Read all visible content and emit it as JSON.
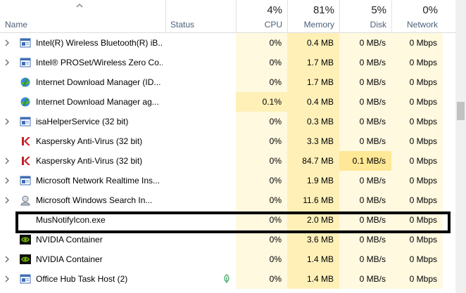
{
  "header": {
    "name_label": "Name",
    "status_label": "Status",
    "cpu": {
      "pct": "4%",
      "label": "CPU"
    },
    "memory": {
      "pct": "81%",
      "label": "Memory"
    },
    "disk": {
      "pct": "5%",
      "label": "Disk"
    },
    "network": {
      "pct": "0%",
      "label": "Network"
    }
  },
  "colors": {
    "cpu_bg": "#fff9e0",
    "memory_bg": "#fff0b8",
    "disk_bg": "#fff9e0",
    "network_bg": "#fff9e0",
    "cpu_active_bg": "#fff0b8",
    "disk_active_bg": "#ffe896"
  },
  "processes": [
    {
      "name": "Intel(R) Wireless Bluetooth(R) iB...",
      "icon": "service-window-icon",
      "expandable": true,
      "status": "",
      "cpu": "0%",
      "memory": "0.4 MB",
      "disk": "0 MB/s",
      "network": "0 Mbps"
    },
    {
      "name": "Intel® PROSet/Wireless Zero Co...",
      "icon": "service-window-icon",
      "expandable": true,
      "status": "",
      "cpu": "0%",
      "memory": "1.7 MB",
      "disk": "0 MB/s",
      "network": "0 Mbps"
    },
    {
      "name": "Internet Download Manager (ID...",
      "icon": "idm-globe-icon",
      "expandable": false,
      "status": "",
      "cpu": "0%",
      "memory": "1.7 MB",
      "disk": "0 MB/s",
      "network": "0 Mbps"
    },
    {
      "name": "Internet Download Manager ag...",
      "icon": "idm-globe-icon",
      "expandable": false,
      "status": "",
      "cpu": "0.1%",
      "cpu_active": true,
      "memory": "0.4 MB",
      "disk": "0 MB/s",
      "network": "0 Mbps"
    },
    {
      "name": "isaHelperService (32 bit)",
      "icon": "service-window-icon",
      "expandable": true,
      "status": "",
      "cpu": "0%",
      "memory": "0.3 MB",
      "disk": "0 MB/s",
      "network": "0 Mbps"
    },
    {
      "name": "Kaspersky Anti-Virus (32 bit)",
      "icon": "kaspersky-icon",
      "expandable": false,
      "status": "",
      "cpu": "0%",
      "memory": "3.3 MB",
      "disk": "0 MB/s",
      "network": "0 Mbps"
    },
    {
      "name": "Kaspersky Anti-Virus (32 bit)",
      "icon": "kaspersky-icon",
      "expandable": true,
      "status": "",
      "cpu": "0%",
      "memory": "84.7 MB",
      "disk": "0.1 MB/s",
      "disk_active": true,
      "network": "0 Mbps"
    },
    {
      "name": "Microsoft Network Realtime Ins...",
      "icon": "service-window-icon",
      "expandable": true,
      "status": "",
      "cpu": "0%",
      "memory": "1.9 MB",
      "disk": "0 MB/s",
      "network": "0 Mbps"
    },
    {
      "name": "Microsoft Windows Search In...",
      "icon": "search-indexer-icon",
      "expandable": true,
      "status": "",
      "cpu": "0%",
      "memory": "11.6 MB",
      "disk": "0 MB/s",
      "network": "0 Mbps"
    },
    {
      "name": "MusNotifyIcon.exe",
      "icon": "",
      "expandable": false,
      "status": "",
      "cpu": "0%",
      "memory": "2.0 MB",
      "disk": "0 MB/s",
      "network": "0 Mbps",
      "highlighted": true
    },
    {
      "name": "NVIDIA Container",
      "icon": "nvidia-icon",
      "expandable": false,
      "status": "",
      "cpu": "0%",
      "memory": "3.6 MB",
      "disk": "0 MB/s",
      "network": "0 Mbps"
    },
    {
      "name": "NVIDIA Container",
      "icon": "nvidia-icon",
      "expandable": true,
      "status": "",
      "cpu": "0%",
      "memory": "1.4 MB",
      "disk": "0 MB/s",
      "network": "0 Mbps"
    },
    {
      "name": "Office Hub Task Host (2)",
      "icon": "service-window-icon",
      "expandable": true,
      "status": "",
      "status_icon": "leaf-icon",
      "cpu": "0%",
      "memory": "1.4 MB",
      "disk": "0 MB/s",
      "network": "0 Mbps"
    }
  ]
}
